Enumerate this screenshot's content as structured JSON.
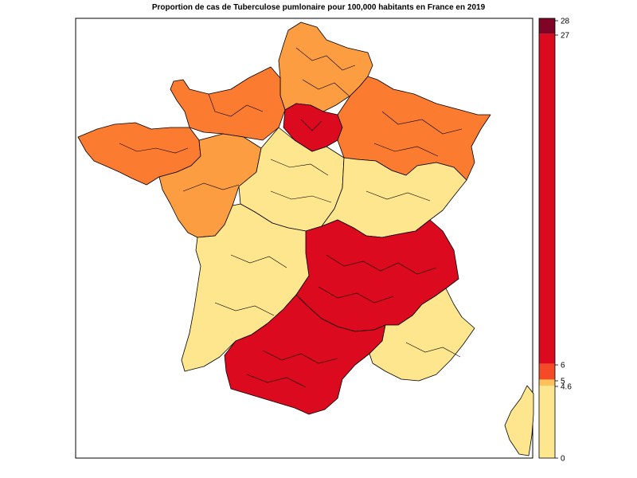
{
  "title": "Proportion de cas de Tuberculose pumlonaire pour 100,000 habitants en France en 2019",
  "colors": {
    "pale_yellow": "#fee68f",
    "yellow_orange": "#fdc15a",
    "light_orange": "#fd9d42",
    "orange": "#fb7b31",
    "red_orange": "#f44a26",
    "red": "#dc0a1f",
    "dark_red": "#7f0425"
  },
  "legend": {
    "ticks": [
      "0",
      "4.6",
      "5",
      "6",
      "27",
      "28"
    ],
    "bins": [
      {
        "from": 0,
        "to": 4.6,
        "color": "#fee68f"
      },
      {
        "from": 4.6,
        "to": 5,
        "color": "#fdc15a"
      },
      {
        "from": 5,
        "to": 6,
        "color": "#f44a26"
      },
      {
        "from": 6,
        "to": 27,
        "color": "#dc0a1f"
      },
      {
        "from": 27,
        "to": 28,
        "color": "#7f0425"
      }
    ]
  }
}
